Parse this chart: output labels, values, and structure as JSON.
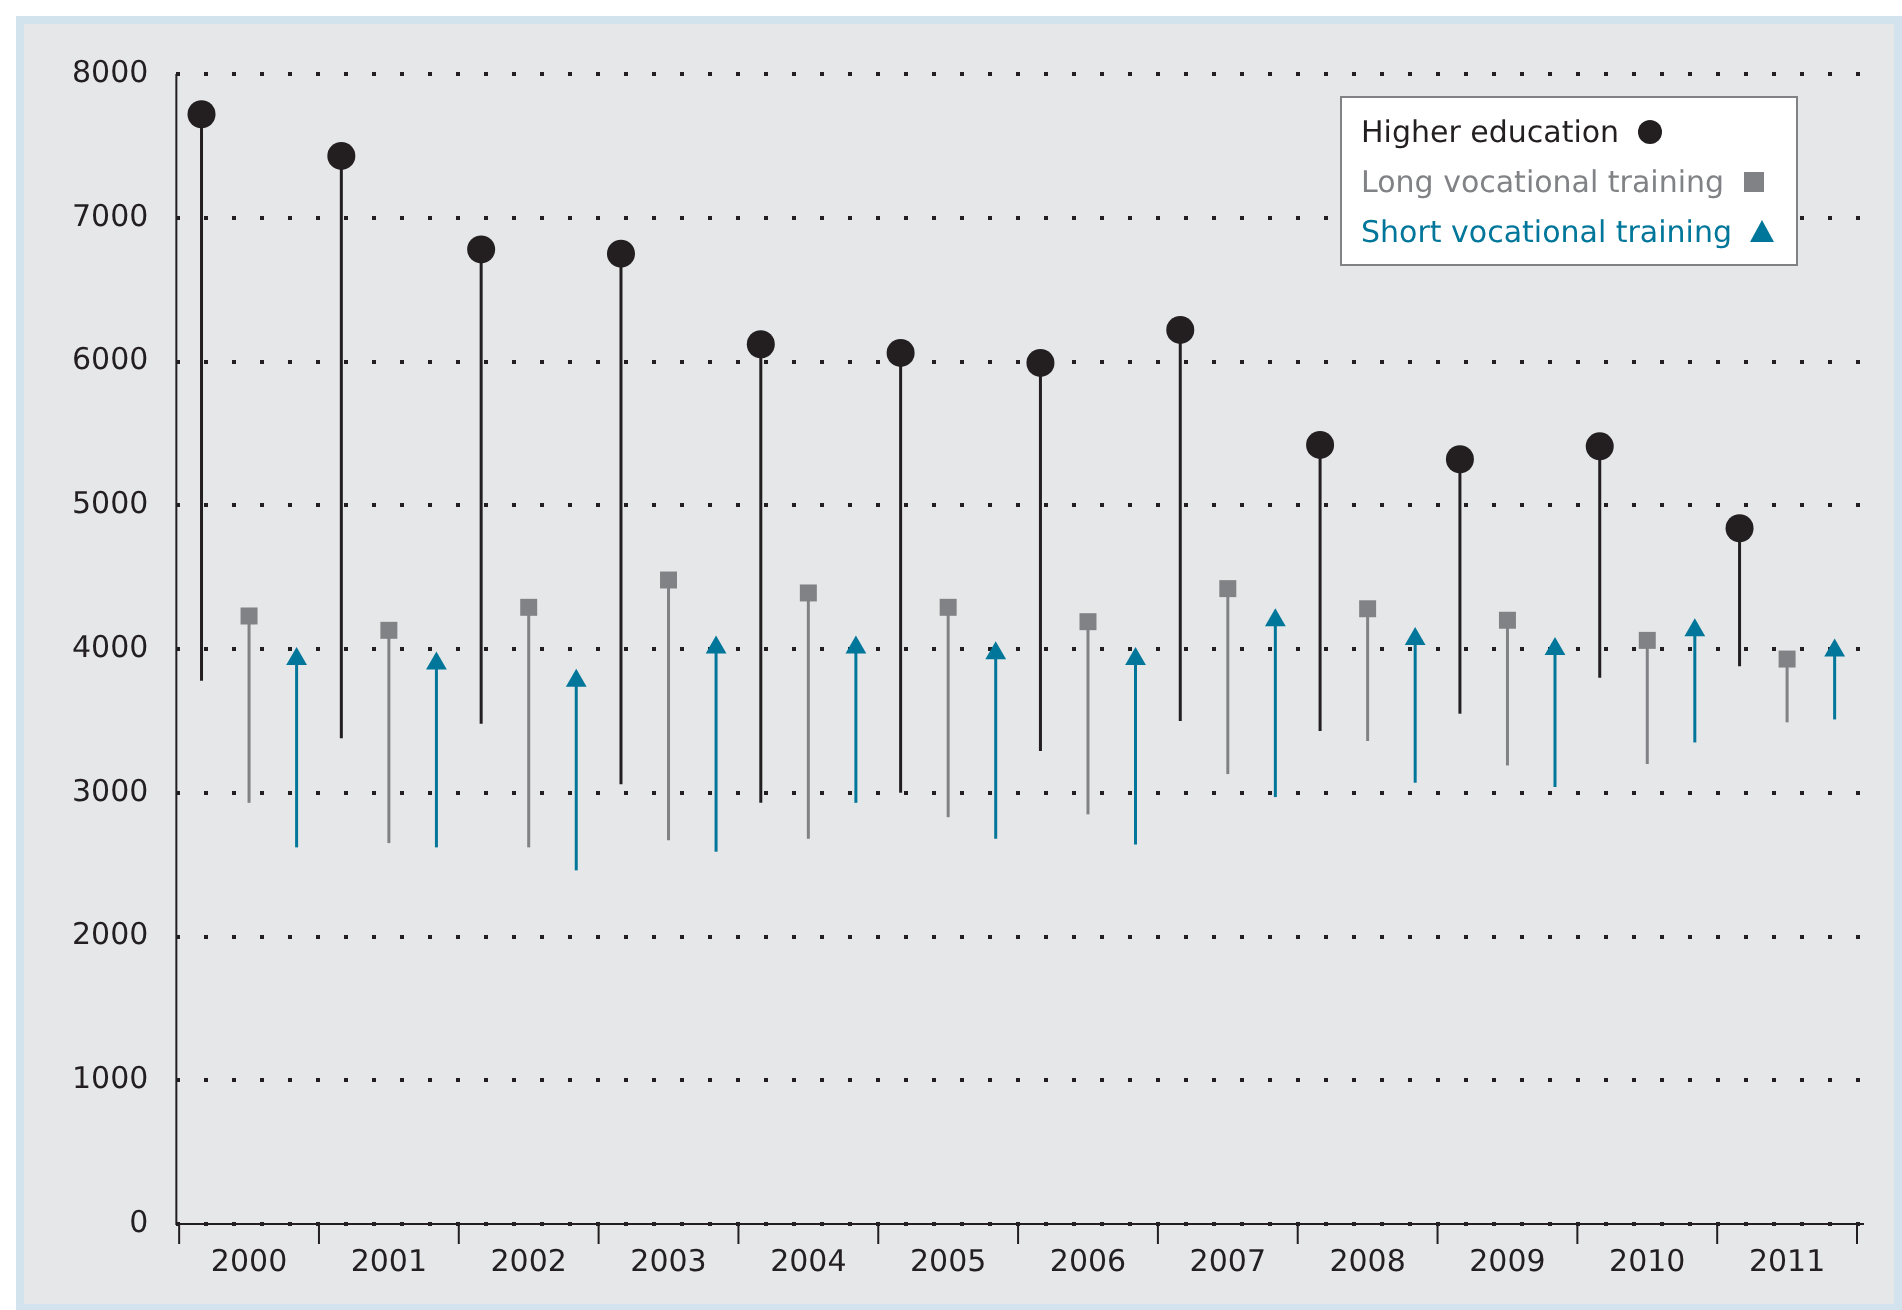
{
  "chart_data": {
    "type": "scatter",
    "categories": [
      "2000",
      "2001",
      "2002",
      "2003",
      "2004",
      "2005",
      "2006",
      "2007",
      "2008",
      "2009",
      "2010",
      "2011"
    ],
    "series": [
      {
        "name": "Higher education",
        "color": "#231f20",
        "marker": "circle",
        "values": [
          7720,
          7430,
          6780,
          6750,
          6120,
          6060,
          5990,
          6220,
          5420,
          5320,
          5410,
          4840
        ],
        "errors": [
          [
            3780,
            7720
          ],
          [
            3380,
            7430
          ],
          [
            3480,
            6780
          ],
          [
            3060,
            6750
          ],
          [
            2930,
            6120
          ],
          [
            3000,
            6060
          ],
          [
            3290,
            5990
          ],
          [
            3500,
            6220
          ],
          [
            3430,
            5420
          ],
          [
            3550,
            5320
          ],
          [
            3800,
            5410
          ],
          [
            3880,
            4840
          ]
        ]
      },
      {
        "name": "Long vocational training",
        "color": "#808285",
        "marker": "square",
        "values": [
          4230,
          4130,
          4290,
          4480,
          4390,
          4290,
          4190,
          4420,
          4280,
          4200,
          4060,
          3930
        ],
        "errors": [
          [
            2930,
            4230
          ],
          [
            2650,
            4130
          ],
          [
            2620,
            4290
          ],
          [
            2670,
            4480
          ],
          [
            2680,
            4390
          ],
          [
            2830,
            4290
          ],
          [
            2850,
            4190
          ],
          [
            3130,
            4420
          ],
          [
            3360,
            4280
          ],
          [
            3190,
            4200
          ],
          [
            3200,
            4060
          ],
          [
            3490,
            3930
          ]
        ]
      },
      {
        "name": "Short vocational training",
        "color": "#00779a",
        "marker": "triangle",
        "values": [
          3930,
          3900,
          3780,
          4010,
          4010,
          3970,
          3930,
          4200,
          4070,
          4000,
          4130,
          3990
        ],
        "errors": [
          [
            2620,
            3930
          ],
          [
            2620,
            3900
          ],
          [
            2460,
            3780
          ],
          [
            2590,
            4010
          ],
          [
            2930,
            4010
          ],
          [
            2680,
            3970
          ],
          [
            2640,
            3930
          ],
          [
            2970,
            4200
          ],
          [
            3070,
            4070
          ],
          [
            3040,
            4000
          ],
          [
            3350,
            4130
          ],
          [
            3510,
            3990
          ]
        ]
      }
    ],
    "ylim": [
      0,
      8000
    ],
    "yticks": [
      0,
      1000,
      2000,
      3000,
      4000,
      5000,
      6000,
      7000,
      8000
    ],
    "grid": "y",
    "legend": "top right"
  }
}
